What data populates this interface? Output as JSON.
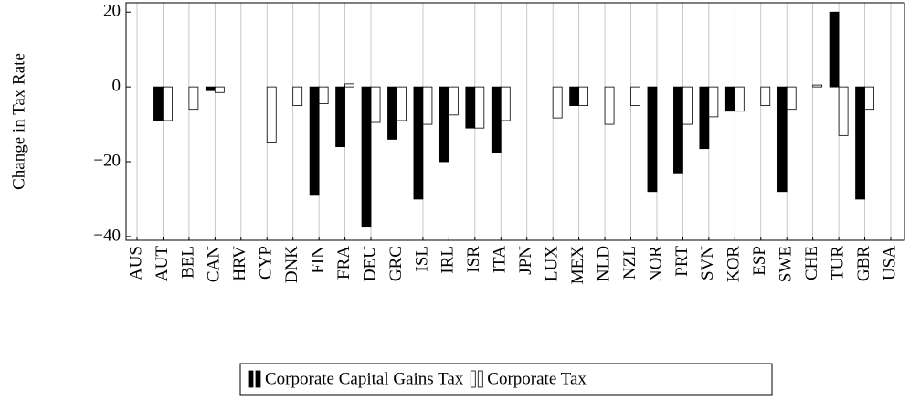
{
  "chart_data": {
    "type": "bar",
    "ylabel": "Change in Tax Rate",
    "categories": [
      "AUS",
      "AUT",
      "BEL",
      "CAN",
      "HRV",
      "CYP",
      "DNK",
      "FIN",
      "FRA",
      "DEU",
      "GRC",
      "ISL",
      "IRL",
      "ISR",
      "ITA",
      "JPN",
      "LUX",
      "MEX",
      "NLD",
      "NZL",
      "NOR",
      "PRT",
      "SVN",
      "KOR",
      "ESP",
      "SWE",
      "CHE",
      "TUR",
      "GBR",
      "USA"
    ],
    "series": [
      {
        "name": "Corporate Capital Gains Tax",
        "color": "#000000",
        "values": [
          0,
          -9,
          0,
          -1,
          0,
          0,
          0,
          -29,
          -16,
          -37.5,
          -14,
          -30,
          -20,
          -11,
          -17.5,
          0,
          0,
          -5,
          0,
          0,
          -28,
          -23,
          -16.5,
          -6.5,
          0,
          -28,
          0,
          20,
          -30,
          0
        ]
      },
      {
        "name": "Corporate Tax",
        "color": "#ffffff",
        "values": [
          0,
          -9,
          -6,
          -1.5,
          0,
          -15,
          -5,
          -4.5,
          0.8,
          -9.5,
          -9,
          -10,
          -7.5,
          -11,
          -9,
          0,
          -8.3,
          -5,
          -10,
          -5,
          0,
          -10,
          -8,
          -6.5,
          -5,
          -6,
          0.5,
          -13,
          -6,
          0
        ]
      }
    ],
    "ylim": [
      -41,
      22.5
    ],
    "yticks": [
      {
        "value": -40,
        "label": "−40"
      },
      {
        "value": -20,
        "label": "−20"
      },
      0,
      20
    ],
    "grid": true
  }
}
